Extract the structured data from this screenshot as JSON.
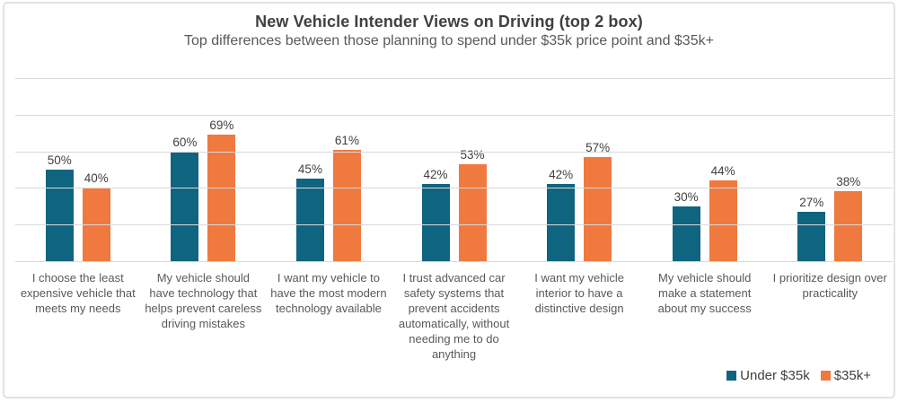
{
  "chart_data": {
    "type": "bar",
    "title": "New Vehicle Intender Views on Driving (top 2 box)",
    "subtitle": "Top differences between those planning to spend under $35k price point and $35k+",
    "categories": [
      "I choose the least expensive vehicle that meets my needs",
      "My vehicle should have technology that helps prevent careless driving mistakes",
      "I want my vehicle to have the most modern technology available",
      "I trust advanced car safety systems that prevent accidents automatically, without needing me to do anything",
      "I want my vehicle interior to have a distinctive design",
      "My vehicle should make a statement about my success",
      "I prioritize design over practicality"
    ],
    "series": [
      {
        "name": "Under $35k",
        "color": "#0F6480",
        "values": [
          50,
          60,
          45,
          42,
          42,
          30,
          27
        ]
      },
      {
        "name": "$35k+",
        "color": "#F0793F",
        "values": [
          40,
          69,
          61,
          53,
          57,
          44,
          38
        ]
      }
    ],
    "value_suffix": "%",
    "xlabel": "",
    "ylabel": "",
    "ylim": [
      0,
      100
    ],
    "grid": true,
    "grid_step": 20,
    "grid_color": "#d9d9d9",
    "legend_position": "bottom-right"
  }
}
